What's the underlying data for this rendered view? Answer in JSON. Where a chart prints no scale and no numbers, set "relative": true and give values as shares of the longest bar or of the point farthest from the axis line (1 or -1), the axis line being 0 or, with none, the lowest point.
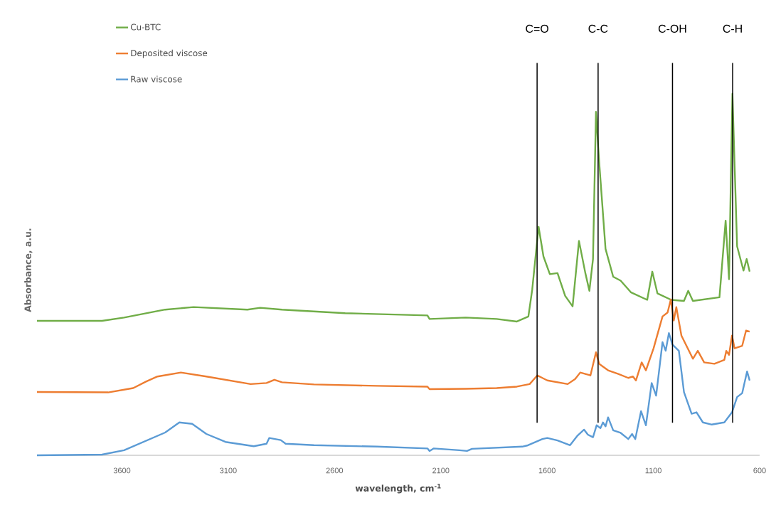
{
  "chart_data": {
    "type": "line",
    "relative": true,
    "xlabel": "wavelength, cm$^{-1}$",
    "ylabel": "Absorbance, a.u.",
    "xlim": [
      4000,
      600
    ],
    "xticks": [
      3600,
      3100,
      2600,
      2100,
      1600,
      1100,
      600
    ],
    "legend": "top left",
    "grid": false,
    "marker": "none",
    "line_style": "solid",
    "ref_lines": [
      {
        "axis": "x",
        "value": 1647,
        "label": "C=O",
        "color": "#000000"
      },
      {
        "axis": "x",
        "value": 1360,
        "label": "C-C",
        "color": "#000000"
      },
      {
        "axis": "x",
        "value": 1010,
        "label": "C-OH",
        "color": "#000000"
      },
      {
        "axis": "x",
        "value": 727,
        "label": "C-H",
        "color": "#000000"
      }
    ],
    "series": [
      {
        "name": "Cu-BTC",
        "color": "#70ad47",
        "x": [
          4000,
          3694,
          3590,
          3397,
          3263,
          3010,
          2950,
          2847,
          2550,
          2163,
          2153,
          1983,
          1837,
          1742,
          1688,
          1670,
          1640,
          1617,
          1587,
          1551,
          1515,
          1480,
          1450,
          1420,
          1401,
          1384,
          1370,
          1355,
          1325,
          1289,
          1254,
          1206,
          1129,
          1105,
          1081,
          1016,
          956,
          936,
          914,
          789,
          760,
          744,
          728,
          706,
          676,
          661,
          647
        ],
        "values": [
          0.372,
          0.372,
          0.381,
          0.403,
          0.41,
          0.403,
          0.408,
          0.403,
          0.393,
          0.387,
          0.377,
          0.381,
          0.377,
          0.37,
          0.384,
          0.458,
          0.632,
          0.55,
          0.501,
          0.504,
          0.441,
          0.412,
          0.593,
          0.504,
          0.455,
          0.543,
          0.95,
          0.812,
          0.571,
          0.494,
          0.483,
          0.451,
          0.43,
          0.508,
          0.448,
          0.43,
          0.427,
          0.455,
          0.427,
          0.437,
          0.649,
          0.487,
          1,
          0.578,
          0.511,
          0.543,
          0.508
        ]
      },
      {
        "name": "Deposited viscose",
        "color": "#ed7d31",
        "x": [
          4000,
          3665,
          3547,
          3487,
          3433,
          3323,
          3203,
          2995,
          2920,
          2883,
          2847,
          2697,
          2400,
          2163,
          2153,
          1983,
          1837,
          1742,
          1682,
          1646,
          1599,
          1503,
          1468,
          1444,
          1396,
          1370,
          1355,
          1313,
          1265,
          1218,
          1196,
          1182,
          1155,
          1135,
          1099,
          1057,
          1033,
          1018,
          1004,
          992,
          968,
          914,
          891,
          861,
          813,
          766,
          757,
          744,
          730,
          718,
          682,
          664,
          647
        ],
        "values": [
          0.175,
          0.174,
          0.186,
          0.204,
          0.218,
          0.229,
          0.218,
          0.197,
          0.2,
          0.209,
          0.202,
          0.196,
          0.192,
          0.19,
          0.183,
          0.184,
          0.186,
          0.19,
          0.197,
          0.221,
          0.207,
          0.197,
          0.211,
          0.229,
          0.221,
          0.285,
          0.253,
          0.235,
          0.225,
          0.214,
          0.218,
          0.207,
          0.257,
          0.235,
          0.296,
          0.384,
          0.395,
          0.431,
          0.373,
          0.41,
          0.331,
          0.267,
          0.289,
          0.257,
          0.253,
          0.264,
          0.289,
          0.278,
          0.331,
          0.296,
          0.303,
          0.345,
          0.342
        ]
      },
      {
        "name": "Raw viscose",
        "color": "#5b9bd5",
        "x": [
          4000,
          3694,
          3590,
          3397,
          3330,
          3270,
          3203,
          3113,
          2980,
          2920,
          2907,
          2853,
          2830,
          2697,
          2400,
          2163,
          2153,
          2133,
          2013,
          1977,
          1953,
          1717,
          1694,
          1622,
          1599,
          1551,
          1492,
          1456,
          1426,
          1408,
          1384,
          1367,
          1349,
          1337,
          1325,
          1313,
          1289,
          1254,
          1218,
          1200,
          1185,
          1158,
          1135,
          1108,
          1087,
          1057,
          1042,
          1027,
          1010,
          992,
          980,
          956,
          920,
          897,
          867,
          825,
          766,
          730,
          706,
          682,
          659,
          647
        ],
        "values": [
          0,
          0.002,
          0.014,
          0.063,
          0.091,
          0.087,
          0.059,
          0.037,
          0.025,
          0.032,
          0.048,
          0.042,
          0.032,
          0.028,
          0.024,
          0.019,
          0.012,
          0.019,
          0.014,
          0.012,
          0.018,
          0.024,
          0.027,
          0.045,
          0.048,
          0.041,
          0.028,
          0.055,
          0.071,
          0.057,
          0.05,
          0.083,
          0.075,
          0.091,
          0.08,
          0.105,
          0.069,
          0.062,
          0.045,
          0.059,
          0.045,
          0.122,
          0.083,
          0.2,
          0.165,
          0.313,
          0.289,
          0.338,
          0.306,
          0.296,
          0.289,
          0.175,
          0.115,
          0.119,
          0.091,
          0.085,
          0.091,
          0.119,
          0.161,
          0.172,
          0.232,
          0.207
        ]
      }
    ]
  }
}
